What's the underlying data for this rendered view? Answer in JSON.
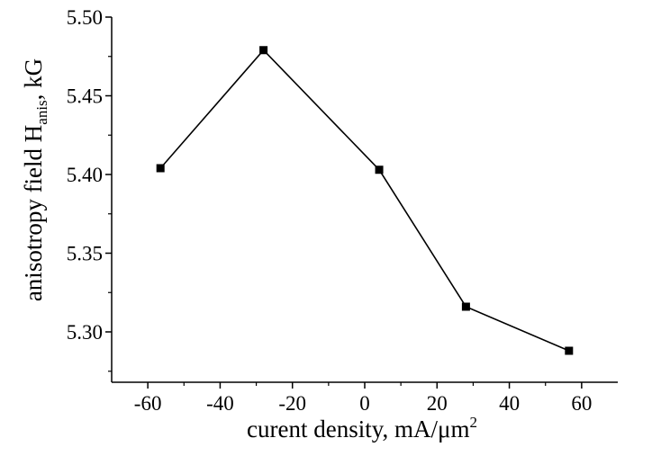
{
  "chart_data": {
    "type": "line",
    "xlabel": "curent density, mA/μm",
    "xlabel_superscript": "2",
    "ylabel": "anisotropy field H",
    "ylabel_subscript": "anis",
    "ylabel_suffix": ", kG",
    "xlim": [
      -70,
      70
    ],
    "ylim": [
      5.268,
      5.5
    ],
    "x_ticks": [
      -60,
      -40,
      -20,
      0,
      20,
      40,
      60
    ],
    "x_tick_labels": [
      "-60",
      "-40",
      "-20",
      "0",
      "20",
      "40",
      "60"
    ],
    "y_ticks": [
      5.3,
      5.35,
      5.4,
      5.45,
      5.5
    ],
    "y_tick_labels": [
      "5.30",
      "5.35",
      "5.40",
      "5.45",
      "5.50"
    ],
    "grid": false,
    "legend": "none",
    "marker": "square",
    "line_color": "#000000",
    "series": [
      {
        "x": [
          -56.5,
          -28,
          4,
          28,
          56.5
        ],
        "y": [
          5.404,
          5.479,
          5.403,
          5.316,
          5.288
        ]
      }
    ]
  }
}
